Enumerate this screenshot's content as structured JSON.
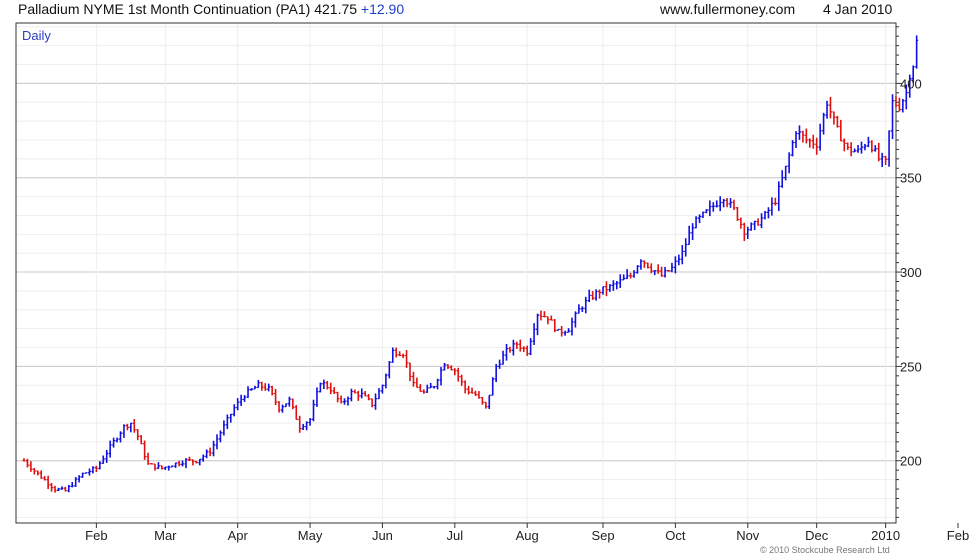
{
  "header": {
    "title": "Palladium NYME 1st Month Continuation (PA1) 421.75",
    "change": "+12.90",
    "site": "www.fullermoney.com",
    "date": "4 Jan 2010"
  },
  "footer": {
    "copyright": "© 2010 Stockcube Research Ltd"
  },
  "colors": {
    "up": "#1010e0",
    "down": "#e01010",
    "grid": "#c8c8c8",
    "minor_grid": "#eeeeee",
    "axis": "#333333"
  },
  "chart_data": {
    "type": "candlestick",
    "period_label": "Daily",
    "ylim": [
      167,
      432
    ],
    "y_ticks": [
      200,
      250,
      300,
      350,
      400
    ],
    "y_tick_labels": [
      "200",
      "250",
      "300",
      "350",
      "400"
    ],
    "grid": true,
    "x_tick_labels": [
      "Feb",
      "Mar",
      "Apr",
      "May",
      "Jun",
      "Jul",
      "Aug",
      "Sep",
      "Oct",
      "Nov",
      "Dec",
      "2010",
      "Feb"
    ],
    "x_tick_day_index": [
      21,
      41,
      62,
      83,
      104,
      125,
      146,
      168,
      189,
      210,
      230,
      250,
      271
    ],
    "x_days_total": 273,
    "close_points": [
      [
        0,
        200
      ],
      [
        4,
        193
      ],
      [
        9,
        185
      ],
      [
        12,
        184
      ],
      [
        17,
        193
      ],
      [
        21,
        196
      ],
      [
        26,
        210
      ],
      [
        29,
        218
      ],
      [
        31,
        220
      ],
      [
        33,
        213
      ],
      [
        36,
        198
      ],
      [
        40,
        196
      ],
      [
        43,
        198
      ],
      [
        47,
        200
      ],
      [
        50,
        200
      ],
      [
        54,
        205
      ],
      [
        57,
        215
      ],
      [
        61,
        228
      ],
      [
        64,
        235
      ],
      [
        68,
        240
      ],
      [
        71,
        238
      ],
      [
        74,
        228
      ],
      [
        77,
        232
      ],
      [
        80,
        218
      ],
      [
        83,
        222
      ],
      [
        86,
        242
      ],
      [
        89,
        238
      ],
      [
        92,
        230
      ],
      [
        95,
        236
      ],
      [
        98,
        235
      ],
      [
        101,
        230
      ],
      [
        104,
        240
      ],
      [
        107,
        258
      ],
      [
        110,
        257
      ],
      [
        113,
        240
      ],
      [
        116,
        236
      ],
      [
        119,
        240
      ],
      [
        122,
        252
      ],
      [
        125,
        248
      ],
      [
        128,
        238
      ],
      [
        131,
        235
      ],
      [
        134,
        228
      ],
      [
        137,
        250
      ],
      [
        140,
        258
      ],
      [
        143,
        262
      ],
      [
        146,
        258
      ],
      [
        149,
        278
      ],
      [
        152,
        276
      ],
      [
        155,
        268
      ],
      [
        158,
        270
      ],
      [
        161,
        280
      ],
      [
        164,
        286
      ],
      [
        167,
        290
      ],
      [
        170,
        292
      ],
      [
        173,
        295
      ],
      [
        176,
        298
      ],
      [
        179,
        307
      ],
      [
        182,
        302
      ],
      [
        185,
        298
      ],
      [
        188,
        302
      ],
      [
        191,
        310
      ],
      [
        194,
        325
      ],
      [
        197,
        330
      ],
      [
        200,
        335
      ],
      [
        203,
        340
      ],
      [
        206,
        333
      ],
      [
        209,
        322
      ],
      [
        212,
        325
      ],
      [
        215,
        330
      ],
      [
        218,
        338
      ],
      [
        221,
        355
      ],
      [
        224,
        375
      ],
      [
        227,
        370
      ],
      [
        230,
        368
      ],
      [
        233,
        390
      ],
      [
        236,
        375
      ],
      [
        239,
        365
      ],
      [
        242,
        364
      ],
      [
        245,
        370
      ],
      [
        248,
        360
      ],
      [
        250,
        358
      ],
      [
        252,
        390
      ],
      [
        254,
        388
      ],
      [
        256,
        395
      ],
      [
        257,
        405
      ],
      [
        258,
        410
      ],
      [
        259,
        422
      ]
    ]
  }
}
